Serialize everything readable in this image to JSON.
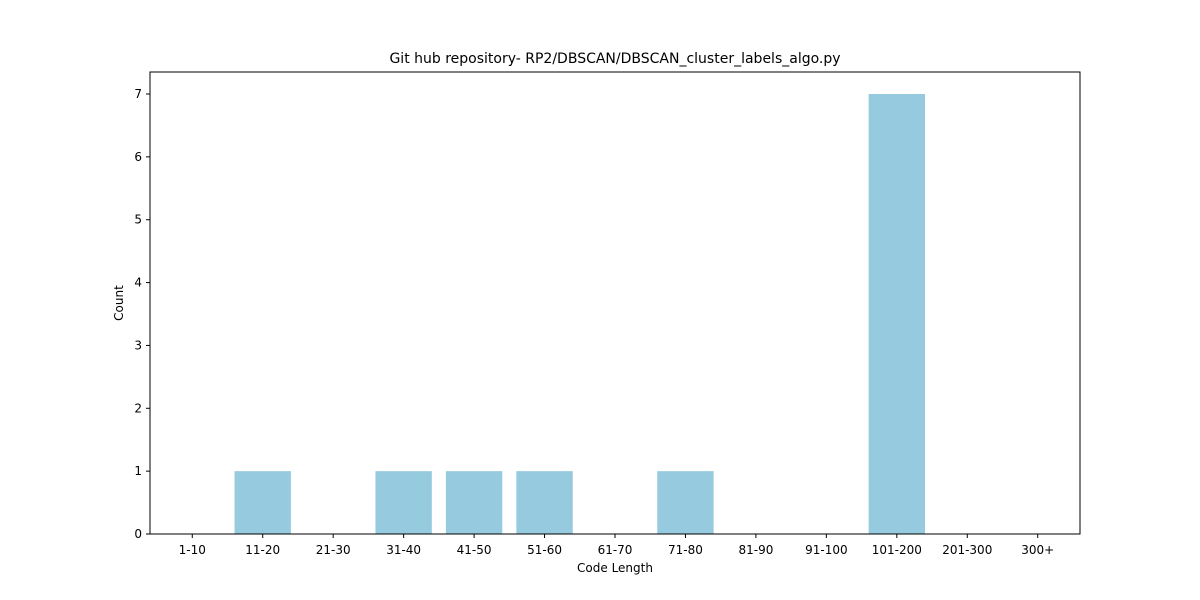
{
  "chart_data": {
    "type": "bar",
    "title": "Git hub repository- RP2/DBSCAN/DBSCAN_cluster_labels_algo.py",
    "xlabel": "Code Length",
    "ylabel": "Count",
    "categories": [
      "1-10",
      "11-20",
      "21-30",
      "31-40",
      "41-50",
      "51-60",
      "61-70",
      "71-80",
      "81-90",
      "91-100",
      "101-200",
      "201-300",
      "300+"
    ],
    "values": [
      0,
      1,
      0,
      1,
      1,
      1,
      0,
      1,
      0,
      0,
      7,
      0,
      0
    ],
    "ylim": [
      0,
      7.35
    ],
    "yticks": [
      0,
      1,
      2,
      3,
      4,
      5,
      6,
      7
    ],
    "grid": false,
    "legend": "none",
    "bar_color": "#96cade"
  }
}
